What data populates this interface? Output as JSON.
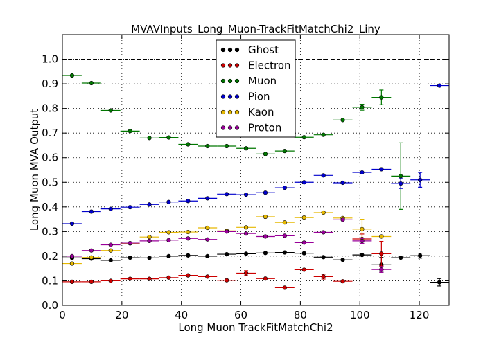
{
  "chart_data": {
    "type": "scatter",
    "title": "MVAVInputs_Long_Muon-TrackFitMatchChi2_Liny",
    "xlabel": "Long Muon TrackFitMatchChi2",
    "ylabel": "Long Muon MVA Output",
    "xlim": [
      0,
      130
    ],
    "ylim": [
      0,
      1.1
    ],
    "xticks": [
      "0",
      "20",
      "40",
      "60",
      "80",
      "100",
      "120"
    ],
    "yticks": [
      "0.0",
      "0.1",
      "0.2",
      "0.3",
      "0.4",
      "0.5",
      "0.6",
      "0.7",
      "0.8",
      "0.9",
      "1.0"
    ],
    "grid": true,
    "reference_line_y": 1.0,
    "bin_halfwidth": 3.25,
    "legend_position": "top-center",
    "series": [
      {
        "name": "Ghost",
        "color": "#000000",
        "points": [
          {
            "x": 3.25,
            "y": 0.193
          },
          {
            "x": 9.75,
            "y": 0.19
          },
          {
            "x": 16.25,
            "y": 0.183
          },
          {
            "x": 22.75,
            "y": 0.194
          },
          {
            "x": 29.25,
            "y": 0.193
          },
          {
            "x": 35.75,
            "y": 0.2
          },
          {
            "x": 42.25,
            "y": 0.203
          },
          {
            "x": 48.75,
            "y": 0.2
          },
          {
            "x": 55.25,
            "y": 0.208
          },
          {
            "x": 61.75,
            "y": 0.21
          },
          {
            "x": 68.25,
            "y": 0.213
          },
          {
            "x": 74.75,
            "y": 0.215
          },
          {
            "x": 81.25,
            "y": 0.212
          },
          {
            "x": 87.75,
            "y": 0.196
          },
          {
            "x": 94.25,
            "y": 0.185
          },
          {
            "x": 100.75,
            "y": 0.205
          },
          {
            "x": 107.25,
            "y": 0.165,
            "err": 0.03
          },
          {
            "x": 113.75,
            "y": 0.194
          },
          {
            "x": 120.25,
            "y": 0.202,
            "err": 0.01
          },
          {
            "x": 126.75,
            "y": 0.094,
            "err": 0.015
          }
        ]
      },
      {
        "name": "Electron",
        "color": "#cc0000",
        "points": [
          {
            "x": 3.25,
            "y": 0.096
          },
          {
            "x": 9.75,
            "y": 0.096
          },
          {
            "x": 16.25,
            "y": 0.1
          },
          {
            "x": 22.75,
            "y": 0.108
          },
          {
            "x": 29.25,
            "y": 0.108
          },
          {
            "x": 35.75,
            "y": 0.113
          },
          {
            "x": 42.25,
            "y": 0.122
          },
          {
            "x": 48.75,
            "y": 0.117
          },
          {
            "x": 55.25,
            "y": 0.102
          },
          {
            "x": 61.75,
            "y": 0.131,
            "err": 0.01
          },
          {
            "x": 68.25,
            "y": 0.109
          },
          {
            "x": 74.75,
            "y": 0.072
          },
          {
            "x": 81.25,
            "y": 0.145
          },
          {
            "x": 87.75,
            "y": 0.117,
            "err": 0.01
          },
          {
            "x": 94.25,
            "y": 0.098
          },
          {
            "x": 100.75,
            "y": 0.27,
            "err": 0.02
          },
          {
            "x": 107.25,
            "y": 0.21,
            "err": 0.05
          }
        ]
      },
      {
        "name": "Muon",
        "color": "#007700",
        "points": [
          {
            "x": 3.25,
            "y": 0.934
          },
          {
            "x": 9.75,
            "y": 0.903
          },
          {
            "x": 16.25,
            "y": 0.792
          },
          {
            "x": 22.75,
            "y": 0.708
          },
          {
            "x": 29.25,
            "y": 0.68
          },
          {
            "x": 35.75,
            "y": 0.682
          },
          {
            "x": 42.25,
            "y": 0.654
          },
          {
            "x": 48.75,
            "y": 0.647
          },
          {
            "x": 55.25,
            "y": 0.647
          },
          {
            "x": 61.75,
            "y": 0.638
          },
          {
            "x": 68.25,
            "y": 0.615
          },
          {
            "x": 74.75,
            "y": 0.627
          },
          {
            "x": 81.25,
            "y": 0.683
          },
          {
            "x": 87.75,
            "y": 0.693
          },
          {
            "x": 94.25,
            "y": 0.753
          },
          {
            "x": 100.75,
            "y": 0.805,
            "err": 0.012
          },
          {
            "x": 107.25,
            "y": 0.845,
            "err": 0.03
          },
          {
            "x": 113.75,
            "y": 0.525,
            "err": 0.135
          }
        ]
      },
      {
        "name": "Pion",
        "color": "#0000cc",
        "points": [
          {
            "x": 3.25,
            "y": 0.332
          },
          {
            "x": 9.75,
            "y": 0.381
          },
          {
            "x": 16.25,
            "y": 0.392
          },
          {
            "x": 22.75,
            "y": 0.399
          },
          {
            "x": 29.25,
            "y": 0.41
          },
          {
            "x": 35.75,
            "y": 0.42
          },
          {
            "x": 42.25,
            "y": 0.424
          },
          {
            "x": 48.75,
            "y": 0.435
          },
          {
            "x": 55.25,
            "y": 0.452
          },
          {
            "x": 61.75,
            "y": 0.45
          },
          {
            "x": 68.25,
            "y": 0.458
          },
          {
            "x": 74.75,
            "y": 0.478
          },
          {
            "x": 81.25,
            "y": 0.5
          },
          {
            "x": 87.75,
            "y": 0.528
          },
          {
            "x": 94.25,
            "y": 0.498
          },
          {
            "x": 100.75,
            "y": 0.54
          },
          {
            "x": 107.25,
            "y": 0.553
          },
          {
            "x": 113.75,
            "y": 0.495,
            "err": 0.02
          },
          {
            "x": 120.25,
            "y": 0.51,
            "err": 0.03
          },
          {
            "x": 126.75,
            "y": 0.893
          }
        ]
      },
      {
        "name": "Kaon",
        "color": "#e6b800",
        "points": [
          {
            "x": 3.25,
            "y": 0.17
          },
          {
            "x": 9.75,
            "y": 0.195
          },
          {
            "x": 16.25,
            "y": 0.223
          },
          {
            "x": 22.75,
            "y": 0.252
          },
          {
            "x": 29.25,
            "y": 0.278
          },
          {
            "x": 35.75,
            "y": 0.297
          },
          {
            "x": 42.25,
            "y": 0.298
          },
          {
            "x": 48.75,
            "y": 0.315
          },
          {
            "x": 55.25,
            "y": 0.303
          },
          {
            "x": 61.75,
            "y": 0.317
          },
          {
            "x": 68.25,
            "y": 0.36
          },
          {
            "x": 74.75,
            "y": 0.337
          },
          {
            "x": 81.25,
            "y": 0.357
          },
          {
            "x": 87.75,
            "y": 0.377
          },
          {
            "x": 94.25,
            "y": 0.355
          },
          {
            "x": 100.75,
            "y": 0.31,
            "err": 0.04
          },
          {
            "x": 107.25,
            "y": 0.28
          }
        ]
      },
      {
        "name": "Proton",
        "color": "#990099",
        "points": [
          {
            "x": 3.25,
            "y": 0.2
          },
          {
            "x": 9.75,
            "y": 0.223
          },
          {
            "x": 16.25,
            "y": 0.246
          },
          {
            "x": 22.75,
            "y": 0.253
          },
          {
            "x": 29.25,
            "y": 0.262
          },
          {
            "x": 35.75,
            "y": 0.265
          },
          {
            "x": 42.25,
            "y": 0.272
          },
          {
            "x": 48.75,
            "y": 0.268
          },
          {
            "x": 55.25,
            "y": 0.3
          },
          {
            "x": 61.75,
            "y": 0.292
          },
          {
            "x": 68.25,
            "y": 0.28
          },
          {
            "x": 74.75,
            "y": 0.283
          },
          {
            "x": 81.25,
            "y": 0.255
          },
          {
            "x": 87.75,
            "y": 0.297
          },
          {
            "x": 94.25,
            "y": 0.348
          },
          {
            "x": 100.75,
            "y": 0.262,
            "err": 0.01
          },
          {
            "x": 107.25,
            "y": 0.146,
            "err": 0.012
          }
        ]
      }
    ]
  }
}
